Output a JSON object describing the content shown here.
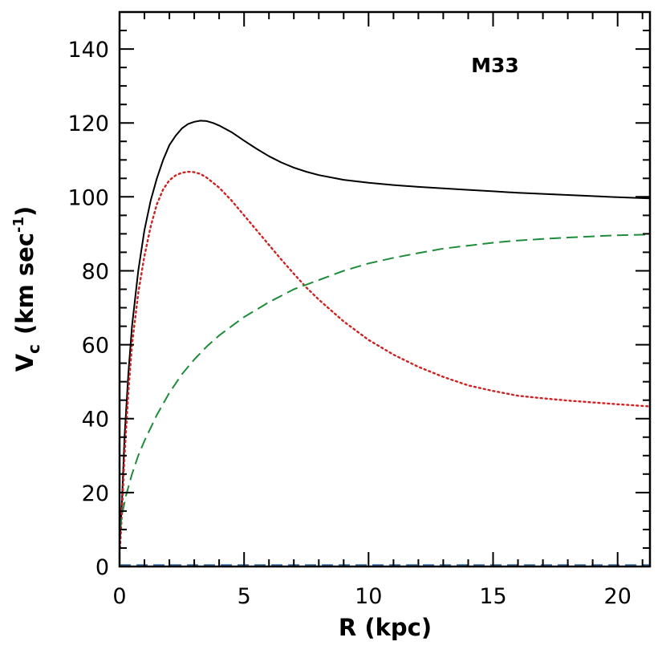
{
  "chart_data": {
    "type": "line",
    "annotation": "M33",
    "xlabel": "R (kpc)",
    "ylabel": {
      "main": "V",
      "sub": "c",
      "unit_pre": "(km sec",
      "unit_sup": "-1",
      "unit_post": ")"
    },
    "xlim": [
      0,
      21.3
    ],
    "ylim": [
      0,
      150
    ],
    "x_ticks": [
      0,
      5,
      10,
      15,
      20
    ],
    "x_tick_labels": [
      "0",
      "5",
      "10",
      "15",
      "20"
    ],
    "y_ticks": [
      0,
      20,
      40,
      60,
      80,
      100,
      120,
      140
    ],
    "y_tick_labels": [
      "0",
      "20",
      "40",
      "60",
      "80",
      "100",
      "120",
      "140"
    ],
    "grid": false,
    "series": [
      {
        "style": "solid",
        "color": "#000000",
        "x": [
          0.02,
          0.1,
          0.2,
          0.35,
          0.5,
          0.75,
          1.0,
          1.25,
          1.5,
          1.75,
          2.0,
          2.25,
          2.5,
          2.75,
          3.0,
          3.25,
          3.5,
          3.75,
          4.0,
          4.5,
          5.0,
          5.5,
          6.0,
          6.5,
          7.0,
          7.5,
          8.0,
          9.0,
          10.0,
          11.0,
          12.0,
          13.0,
          14.0,
          15.0,
          16.0,
          17.0,
          18.0,
          19.0,
          20.0,
          21.3
        ],
        "y": [
          8,
          18,
          35,
          52,
          65,
          80,
          91,
          99,
          105,
          110,
          114,
          116.5,
          118.5,
          119.7,
          120.3,
          120.6,
          120.5,
          120.0,
          119.3,
          117.5,
          115.2,
          113.0,
          111.0,
          109.3,
          107.9,
          106.8,
          105.9,
          104.6,
          103.8,
          103.2,
          102.7,
          102.3,
          101.9,
          101.5,
          101.1,
          100.8,
          100.5,
          100.2,
          99.9,
          99.6
        ]
      },
      {
        "style": "dotted",
        "color": "#cc2222",
        "x": [
          0.02,
          0.1,
          0.2,
          0.35,
          0.5,
          0.75,
          1.0,
          1.25,
          1.5,
          1.75,
          2.0,
          2.25,
          2.5,
          2.75,
          3.0,
          3.25,
          3.5,
          4.0,
          4.5,
          5.0,
          5.5,
          6.0,
          6.5,
          7.0,
          7.5,
          8.0,
          9.0,
          10.0,
          11.0,
          12.0,
          13.0,
          14.0,
          15.0,
          16.0,
          17.0,
          18.0,
          19.0,
          20.0,
          21.3
        ],
        "y": [
          5,
          15,
          30,
          47,
          60,
          74,
          84,
          92,
          98,
          102,
          104.5,
          105.8,
          106.5,
          106.8,
          106.7,
          106.2,
          105.2,
          102.5,
          99.0,
          95.0,
          91.0,
          87.0,
          83.0,
          79.2,
          75.5,
          72.2,
          66.3,
          61.3,
          57.3,
          54.0,
          51.3,
          49.0,
          47.5,
          46.2,
          45.5,
          44.9,
          44.4,
          43.9,
          43.3
        ]
      },
      {
        "style": "dashed",
        "color": "#1e8c3a",
        "x": [
          0.02,
          0.1,
          0.25,
          0.5,
          0.75,
          1.0,
          1.5,
          2.0,
          2.5,
          3.0,
          3.5,
          4.0,
          4.5,
          5.0,
          6.0,
          7.0,
          8.0,
          9.0,
          10.0,
          11.0,
          12.0,
          13.0,
          14.0,
          15.0,
          16.0,
          17.0,
          18.0,
          19.0,
          20.0,
          21.3
        ],
        "y": [
          10,
          14,
          19,
          25,
          30,
          34,
          41,
          47,
          52,
          56,
          59.5,
          62.5,
          65,
          67.5,
          71.5,
          75,
          77.5,
          80,
          82,
          83.5,
          84.8,
          86,
          86.8,
          87.6,
          88.2,
          88.6,
          89.0,
          89.3,
          89.6,
          89.8
        ]
      },
      {
        "style": "dashed",
        "color": "#2a6aa8",
        "x": [
          0.0,
          21.3
        ],
        "y": [
          0.4,
          0.4
        ]
      }
    ]
  }
}
